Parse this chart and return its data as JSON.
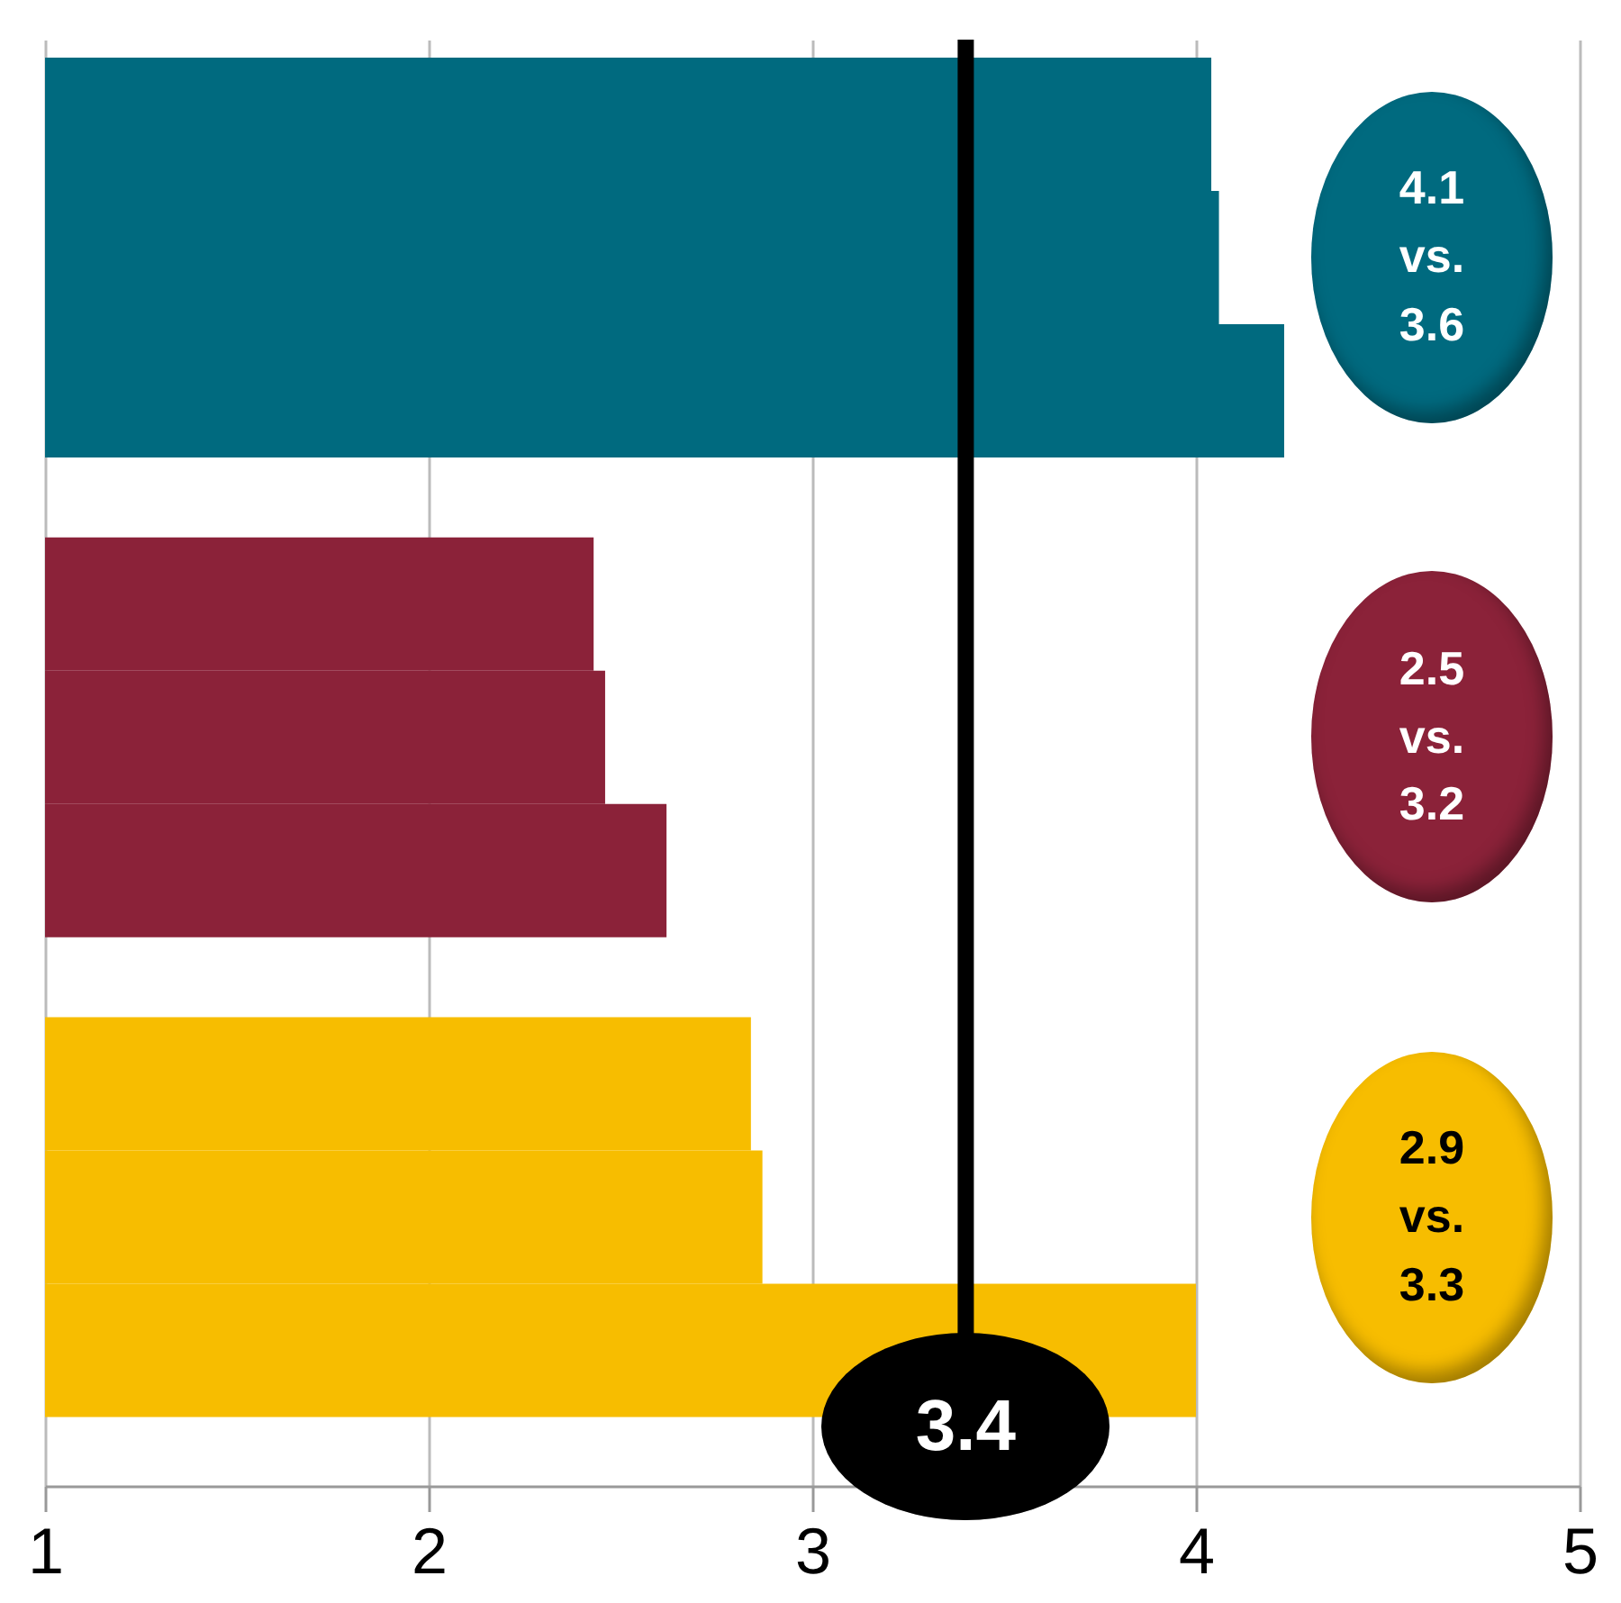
{
  "chart_data": {
    "type": "bar",
    "orientation": "horizontal",
    "categories": [
      null,
      null,
      null,
      null,
      null,
      null,
      null,
      null,
      null
    ],
    "values": [
      4.04,
      4.06,
      4.23,
      2.43,
      2.46,
      2.62,
      2.84,
      2.87,
      4.0
    ],
    "colors": [
      "#006a7f",
      "#006a7f",
      "#006a7f",
      "#8b2239",
      "#8b2239",
      "#8b2239",
      "#f7bd00",
      "#f7bd00",
      "#f7bd00"
    ],
    "xlim": [
      1,
      5
    ],
    "xticks": [
      1,
      2,
      3,
      4,
      5
    ],
    "grid": "x",
    "ref_lines": [
      {
        "axis": "x",
        "value": 3.4,
        "label": "3.4",
        "color": "#000000"
      }
    ],
    "annotations": [
      "4.1 vs. 3.6",
      "2.5 vs. 3.2",
      "2.9 vs. 3.3"
    ]
  }
}
